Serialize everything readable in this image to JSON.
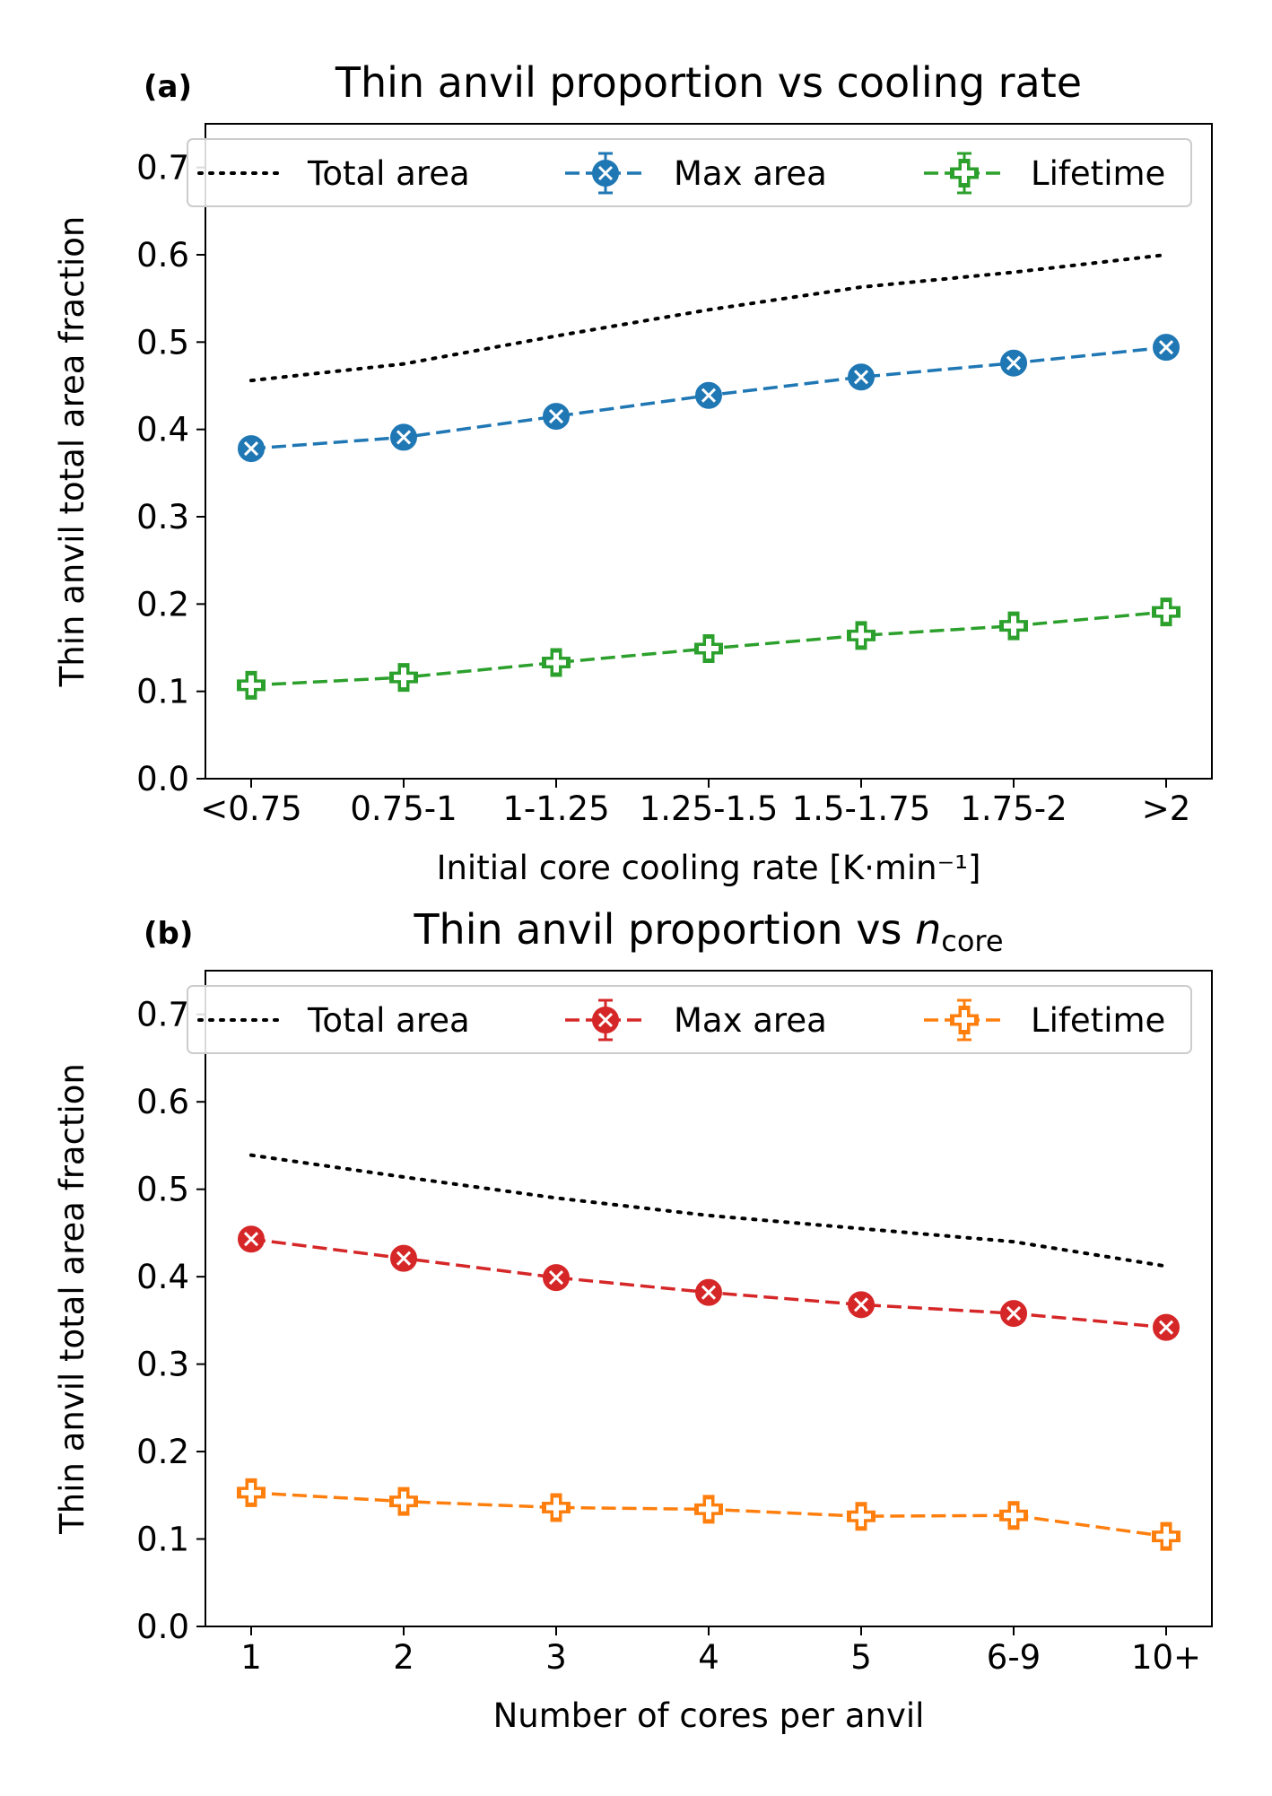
{
  "chart_data": [
    {
      "type": "line",
      "panel_label": "(a)",
      "title": "Thin anvil proportion vs cooling rate",
      "title_suffix": "",
      "xlabel": "Initial core cooling rate [K·min⁻¹]",
      "ylabel": "Thin anvil total area fraction",
      "categories": [
        "<0.75",
        "0.75-1",
        "1-1.25",
        "1.25-1.5",
        "1.5-1.75",
        "1.75-2",
        ">2"
      ],
      "ylim": [
        0.0,
        0.75
      ],
      "yticks": [
        "0.0",
        "0.1",
        "0.2",
        "0.3",
        "0.4",
        "0.5",
        "0.6",
        "0.7"
      ],
      "legend": "top, spanning width",
      "grid": false,
      "series": [
        {
          "name": "Total area",
          "style": "dotted",
          "marker": "none",
          "color": "#000000",
          "values": [
            0.456,
            0.475,
            0.507,
            0.537,
            0.563,
            0.58,
            0.6
          ]
        },
        {
          "name": "Max area",
          "style": "dashed",
          "marker": "x-circle",
          "color": "#1f77b4",
          "values": [
            0.378,
            0.391,
            0.415,
            0.439,
            0.46,
            0.476,
            0.494
          ]
        },
        {
          "name": "Lifetime",
          "style": "dashed",
          "marker": "plus",
          "color": "#2ca02c",
          "values": [
            0.107,
            0.116,
            0.133,
            0.149,
            0.164,
            0.175,
            0.191
          ]
        }
      ]
    },
    {
      "type": "line",
      "panel_label": "(b)",
      "title": "Thin anvil proportion vs ",
      "title_suffix": "n",
      "title_subscript": "core",
      "xlabel": "Number of cores per anvil",
      "ylabel": "Thin anvil total area fraction",
      "categories": [
        "1",
        "2",
        "3",
        "4",
        "5",
        "6-9",
        "10+"
      ],
      "ylim": [
        0.0,
        0.75
      ],
      "yticks": [
        "0.0",
        "0.1",
        "0.2",
        "0.3",
        "0.4",
        "0.5",
        "0.6",
        "0.7"
      ],
      "legend": "top, spanning width",
      "grid": false,
      "series": [
        {
          "name": "Total area",
          "style": "dotted",
          "marker": "none",
          "color": "#000000",
          "values": [
            0.539,
            0.514,
            0.49,
            0.47,
            0.455,
            0.44,
            0.412
          ]
        },
        {
          "name": "Max area",
          "style": "dashed",
          "marker": "x-circle",
          "color": "#d62728",
          "values": [
            0.443,
            0.421,
            0.399,
            0.382,
            0.368,
            0.358,
            0.342
          ]
        },
        {
          "name": "Lifetime",
          "style": "dashed",
          "marker": "plus",
          "color": "#ff7f0e",
          "values": [
            0.153,
            0.143,
            0.136,
            0.134,
            0.126,
            0.127,
            0.103
          ]
        }
      ]
    }
  ]
}
